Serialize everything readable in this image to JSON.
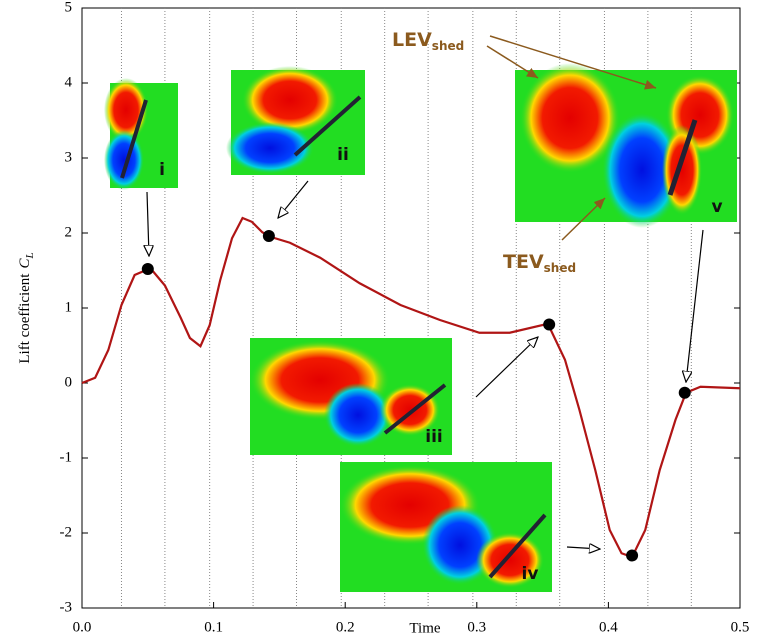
{
  "chart_data": {
    "type": "line",
    "x_label": "Time",
    "y_label": "Lift coefficient",
    "y_label_symbol": "C",
    "y_label_sub": "L",
    "x": [
      0,
      0.01,
      0.02,
      0.03,
      0.04,
      0.052,
      0.063,
      0.075,
      0.082,
      0.09,
      0.097,
      0.105,
      0.114,
      0.122,
      0.129,
      0.137,
      0.143,
      0.158,
      0.181,
      0.211,
      0.242,
      0.272,
      0.302,
      0.325,
      0.354,
      0.367,
      0.378,
      0.39,
      0.401,
      0.41,
      0.418,
      0.428,
      0.439,
      0.451,
      0.459,
      0.47,
      0.5
    ],
    "values": [
      0,
      0.07,
      0.44,
      1.04,
      1.44,
      1.53,
      1.3,
      0.87,
      0.6,
      0.49,
      0.77,
      1.37,
      1.93,
      2.2,
      2.15,
      2.01,
      1.95,
      1.87,
      1.67,
      1.33,
      1.04,
      0.84,
      0.67,
      0.67,
      0.79,
      0.31,
      -0.36,
      -1.16,
      -1.96,
      -2.27,
      -2.32,
      -1.96,
      -1.16,
      -0.49,
      -0.13,
      -0.05,
      -0.07
    ],
    "color": "#b01515",
    "markers": {
      "x": [
        0.05,
        0.142,
        0.355,
        0.418,
        0.458
      ],
      "y": [
        1.52,
        1.96,
        0.78,
        -2.3,
        -0.13
      ],
      "color": "#000000"
    },
    "annotations": [
      "i",
      "ii",
      "iii",
      "iv",
      "v"
    ],
    "lev_label": {
      "text": "LEV",
      "sub": "shed"
    },
    "tev_label": {
      "text": "TEV",
      "sub": "shed"
    },
    "xlim": [
      0,
      0.5
    ],
    "ylim": [
      -3,
      5
    ],
    "xticks": [
      {
        "value": 0,
        "label": "0.0"
      },
      0.1,
      0.2,
      0.3,
      0.4,
      0.5
    ],
    "yticks": [
      -3,
      -2,
      -1,
      0,
      1,
      2,
      3,
      4,
      5
    ],
    "xgrid": [
      0.03,
      0.063,
      0.097,
      0.13,
      0.163,
      0.197,
      0.23,
      0.263,
      0.297,
      0.33,
      0.363,
      0.397,
      0.43,
      0.463
    ]
  }
}
